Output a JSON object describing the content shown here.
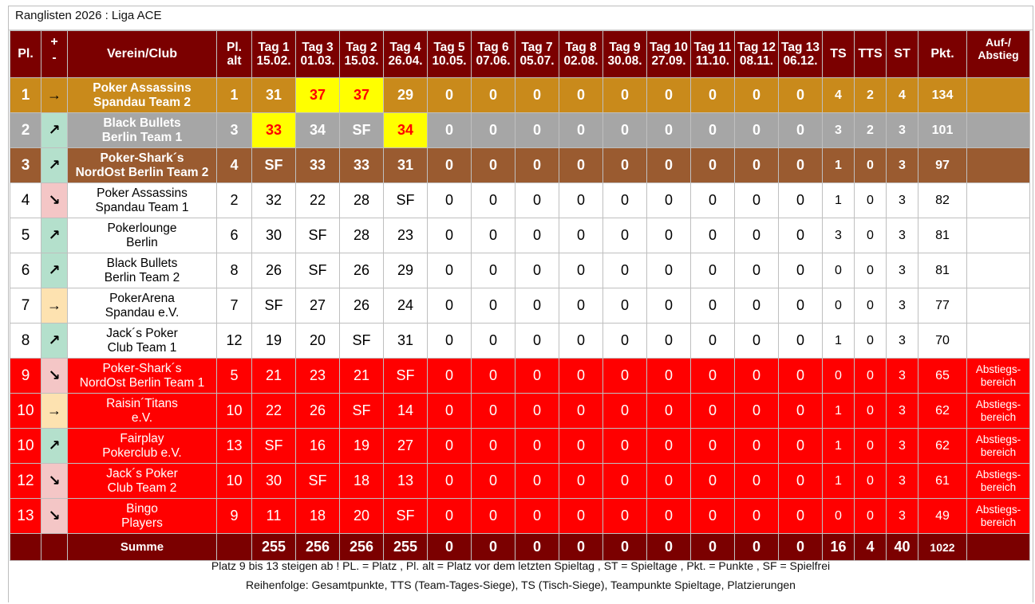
{
  "page": {
    "title": "Ranglisten 2026 : Liga ACE"
  },
  "header": {
    "pl": "Pl.",
    "plus": "+",
    "minus": "-",
    "club": "Verein/Club",
    "pl_alt_1": "Pl.",
    "pl_alt_2": "alt",
    "days": [
      {
        "label": "Tag 1",
        "date": "15.02."
      },
      {
        "label": "Tag 3",
        "date": "01.03."
      },
      {
        "label": "Tag 2",
        "date": "15.03."
      },
      {
        "label": "Tag 4",
        "date": "26.04."
      },
      {
        "label": "Tag 5",
        "date": "10.05."
      },
      {
        "label": "Tag 6",
        "date": "07.06."
      },
      {
        "label": "Tag 7",
        "date": "05.07."
      },
      {
        "label": "Tag 8",
        "date": "02.08."
      },
      {
        "label": "Tag 9",
        "date": "30.08."
      },
      {
        "label": "Tag 10",
        "date": "27.09."
      },
      {
        "label": "Tag 11",
        "date": "11.10."
      },
      {
        "label": "Tag 12",
        "date": "08.11."
      },
      {
        "label": "Tag 13",
        "date": "06.12."
      }
    ],
    "ts": "TS",
    "tts": "TTS",
    "st": "ST",
    "pkt": "Pkt.",
    "auf_1": "Auf-/",
    "auf_2": "Abstieg"
  },
  "arrow_glyphs": {
    "up": "↗",
    "down": "↘",
    "same": "→"
  },
  "rows": [
    {
      "pl": "1",
      "trend": "same",
      "club1": "Poker Assassins",
      "club2": "Spandau Team 2",
      "pl_alt": "1",
      "days": [
        "31",
        "37",
        "37",
        "29",
        "0",
        "0",
        "0",
        "0",
        "0",
        "0",
        "0",
        "0",
        "0"
      ],
      "best": [
        1,
        2
      ],
      "ts": "4",
      "tts": "2",
      "st": "4",
      "pkt": "134",
      "zone1": "",
      "zone2": "",
      "style": "gold"
    },
    {
      "pl": "2",
      "trend": "up",
      "club1": "Black Bullets",
      "club2": "Berlin Team 1",
      "pl_alt": "3",
      "days": [
        "33",
        "34",
        "SF",
        "34",
        "0",
        "0",
        "0",
        "0",
        "0",
        "0",
        "0",
        "0",
        "0"
      ],
      "best": [
        0,
        3
      ],
      "ts": "3",
      "tts": "2",
      "st": "3",
      "pkt": "101",
      "zone1": "",
      "zone2": "",
      "style": "silver"
    },
    {
      "pl": "3",
      "trend": "up",
      "club1": "Poker-Shark´s",
      "club2": "NordOst Berlin Team 2",
      "pl_alt": "4",
      "days": [
        "SF",
        "33",
        "33",
        "31",
        "0",
        "0",
        "0",
        "0",
        "0",
        "0",
        "0",
        "0",
        "0"
      ],
      "best": [],
      "ts": "1",
      "tts": "0",
      "st": "3",
      "pkt": "97",
      "zone1": "",
      "zone2": "",
      "style": "bronze"
    },
    {
      "pl": "4",
      "trend": "down",
      "club1": "Poker Assassins",
      "club2": "Spandau Team 1",
      "pl_alt": "2",
      "days": [
        "32",
        "22",
        "28",
        "SF",
        "0",
        "0",
        "0",
        "0",
        "0",
        "0",
        "0",
        "0",
        "0"
      ],
      "best": [],
      "ts": "1",
      "tts": "0",
      "st": "3",
      "pkt": "82",
      "zone1": "",
      "zone2": "",
      "style": "normal"
    },
    {
      "pl": "5",
      "trend": "up",
      "club1": "Pokerlounge",
      "club2": "Berlin",
      "pl_alt": "6",
      "days": [
        "30",
        "SF",
        "28",
        "23",
        "0",
        "0",
        "0",
        "0",
        "0",
        "0",
        "0",
        "0",
        "0"
      ],
      "best": [],
      "ts": "3",
      "tts": "0",
      "st": "3",
      "pkt": "81",
      "zone1": "",
      "zone2": "",
      "style": "normal"
    },
    {
      "pl": "6",
      "trend": "up",
      "club1": "Black Bullets",
      "club2": "Berlin Team 2",
      "pl_alt": "8",
      "days": [
        "26",
        "SF",
        "26",
        "29",
        "0",
        "0",
        "0",
        "0",
        "0",
        "0",
        "0",
        "0",
        "0"
      ],
      "best": [],
      "ts": "0",
      "tts": "0",
      "st": "3",
      "pkt": "81",
      "zone1": "",
      "zone2": "",
      "style": "normal"
    },
    {
      "pl": "7",
      "trend": "same",
      "club1": "PokerArena",
      "club2": "Spandau e.V.",
      "pl_alt": "7",
      "days": [
        "SF",
        "27",
        "26",
        "24",
        "0",
        "0",
        "0",
        "0",
        "0",
        "0",
        "0",
        "0",
        "0"
      ],
      "best": [],
      "ts": "0",
      "tts": "0",
      "st": "3",
      "pkt": "77",
      "zone1": "",
      "zone2": "",
      "style": "normal"
    },
    {
      "pl": "8",
      "trend": "up",
      "club1": "Jack´s Poker",
      "club2": "Club Team 1",
      "pl_alt": "12",
      "days": [
        "19",
        "20",
        "SF",
        "31",
        "0",
        "0",
        "0",
        "0",
        "0",
        "0",
        "0",
        "0",
        "0"
      ],
      "best": [],
      "ts": "1",
      "tts": "0",
      "st": "3",
      "pkt": "70",
      "zone1": "",
      "zone2": "",
      "style": "normal"
    },
    {
      "pl": "9",
      "trend": "down",
      "club1": "Poker-Shark´s",
      "club2": "NordOst Berlin Team 1",
      "pl_alt": "5",
      "days": [
        "21",
        "23",
        "21",
        "SF",
        "0",
        "0",
        "0",
        "0",
        "0",
        "0",
        "0",
        "0",
        "0"
      ],
      "best": [],
      "ts": "0",
      "tts": "0",
      "st": "3",
      "pkt": "65",
      "zone1": "Abstiegs-",
      "zone2": "bereich",
      "style": "relegation"
    },
    {
      "pl": "10",
      "trend": "same",
      "club1": "Raisin´Titans",
      "club2": "e.V.",
      "pl_alt": "10",
      "days": [
        "22",
        "26",
        "SF",
        "14",
        "0",
        "0",
        "0",
        "0",
        "0",
        "0",
        "0",
        "0",
        "0"
      ],
      "best": [],
      "ts": "1",
      "tts": "0",
      "st": "3",
      "pkt": "62",
      "zone1": "Abstiegs-",
      "zone2": "bereich",
      "style": "relegation"
    },
    {
      "pl": "10",
      "trend": "up",
      "club1": "Fairplay",
      "club2": "Pokerclub e.V.",
      "pl_alt": "13",
      "days": [
        "SF",
        "16",
        "19",
        "27",
        "0",
        "0",
        "0",
        "0",
        "0",
        "0",
        "0",
        "0",
        "0"
      ],
      "best": [],
      "ts": "1",
      "tts": "0",
      "st": "3",
      "pkt": "62",
      "zone1": "Abstiegs-",
      "zone2": "bereich",
      "style": "relegation"
    },
    {
      "pl": "12",
      "trend": "down",
      "club1": "Jack´s Poker",
      "club2": "Club Team 2",
      "pl_alt": "10",
      "days": [
        "30",
        "SF",
        "18",
        "13",
        "0",
        "0",
        "0",
        "0",
        "0",
        "0",
        "0",
        "0",
        "0"
      ],
      "best": [],
      "ts": "1",
      "tts": "0",
      "st": "3",
      "pkt": "61",
      "zone1": "Abstiegs-",
      "zone2": "bereich",
      "style": "relegation"
    },
    {
      "pl": "13",
      "trend": "down",
      "club1": "Bingo",
      "club2": "Players",
      "pl_alt": "9",
      "days": [
        "11",
        "18",
        "20",
        "SF",
        "0",
        "0",
        "0",
        "0",
        "0",
        "0",
        "0",
        "0",
        "0"
      ],
      "best": [],
      "ts": "0",
      "tts": "0",
      "st": "3",
      "pkt": "49",
      "zone1": "Abstiegs-",
      "zone2": "bereich",
      "style": "relegation"
    }
  ],
  "totals": {
    "label": "Summe",
    "days": [
      "255",
      "256",
      "256",
      "255",
      "0",
      "0",
      "0",
      "0",
      "0",
      "0",
      "0",
      "0",
      "0"
    ],
    "ts": "16",
    "tts": "4",
    "st": "40",
    "pkt": "1022"
  },
  "footnotes": {
    "line1": "Platz 9 bis 13 steigen ab ! PL. = Platz , Pl. alt = Platz vor dem letzten Spieltag , ST = Spieltage , Pkt. = Punkte , SF = Spielfrei",
    "line2": "Reihenfolge: Gesamtpunkte, TTS (Team-Tages-Siege), TS (Tisch-Siege), Teampunkte Spieltage, Platzierungen"
  }
}
